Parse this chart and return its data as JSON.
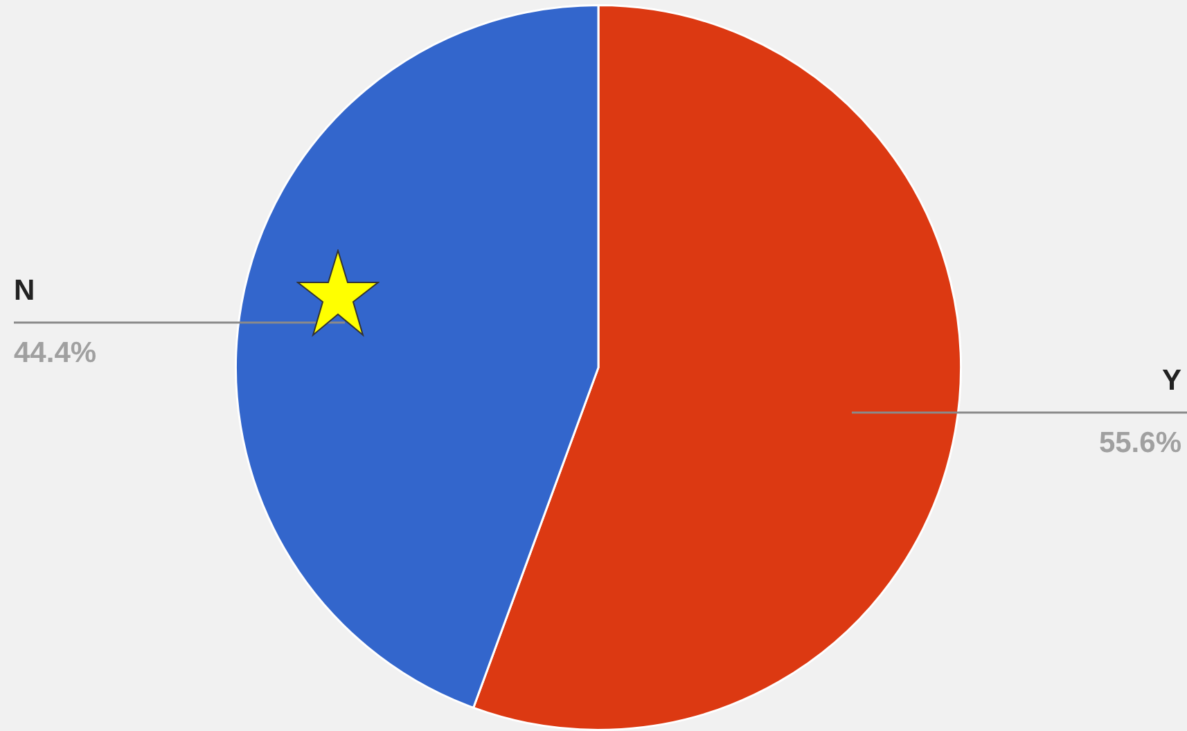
{
  "chart_data": {
    "type": "pie",
    "categories": [
      "Y",
      "N"
    ],
    "values": [
      55.6,
      44.4
    ],
    "colors": [
      "#dc3912",
      "#3366cc"
    ],
    "value_labels": [
      "55.6%",
      "44.4%"
    ],
    "legend": false
  }
}
